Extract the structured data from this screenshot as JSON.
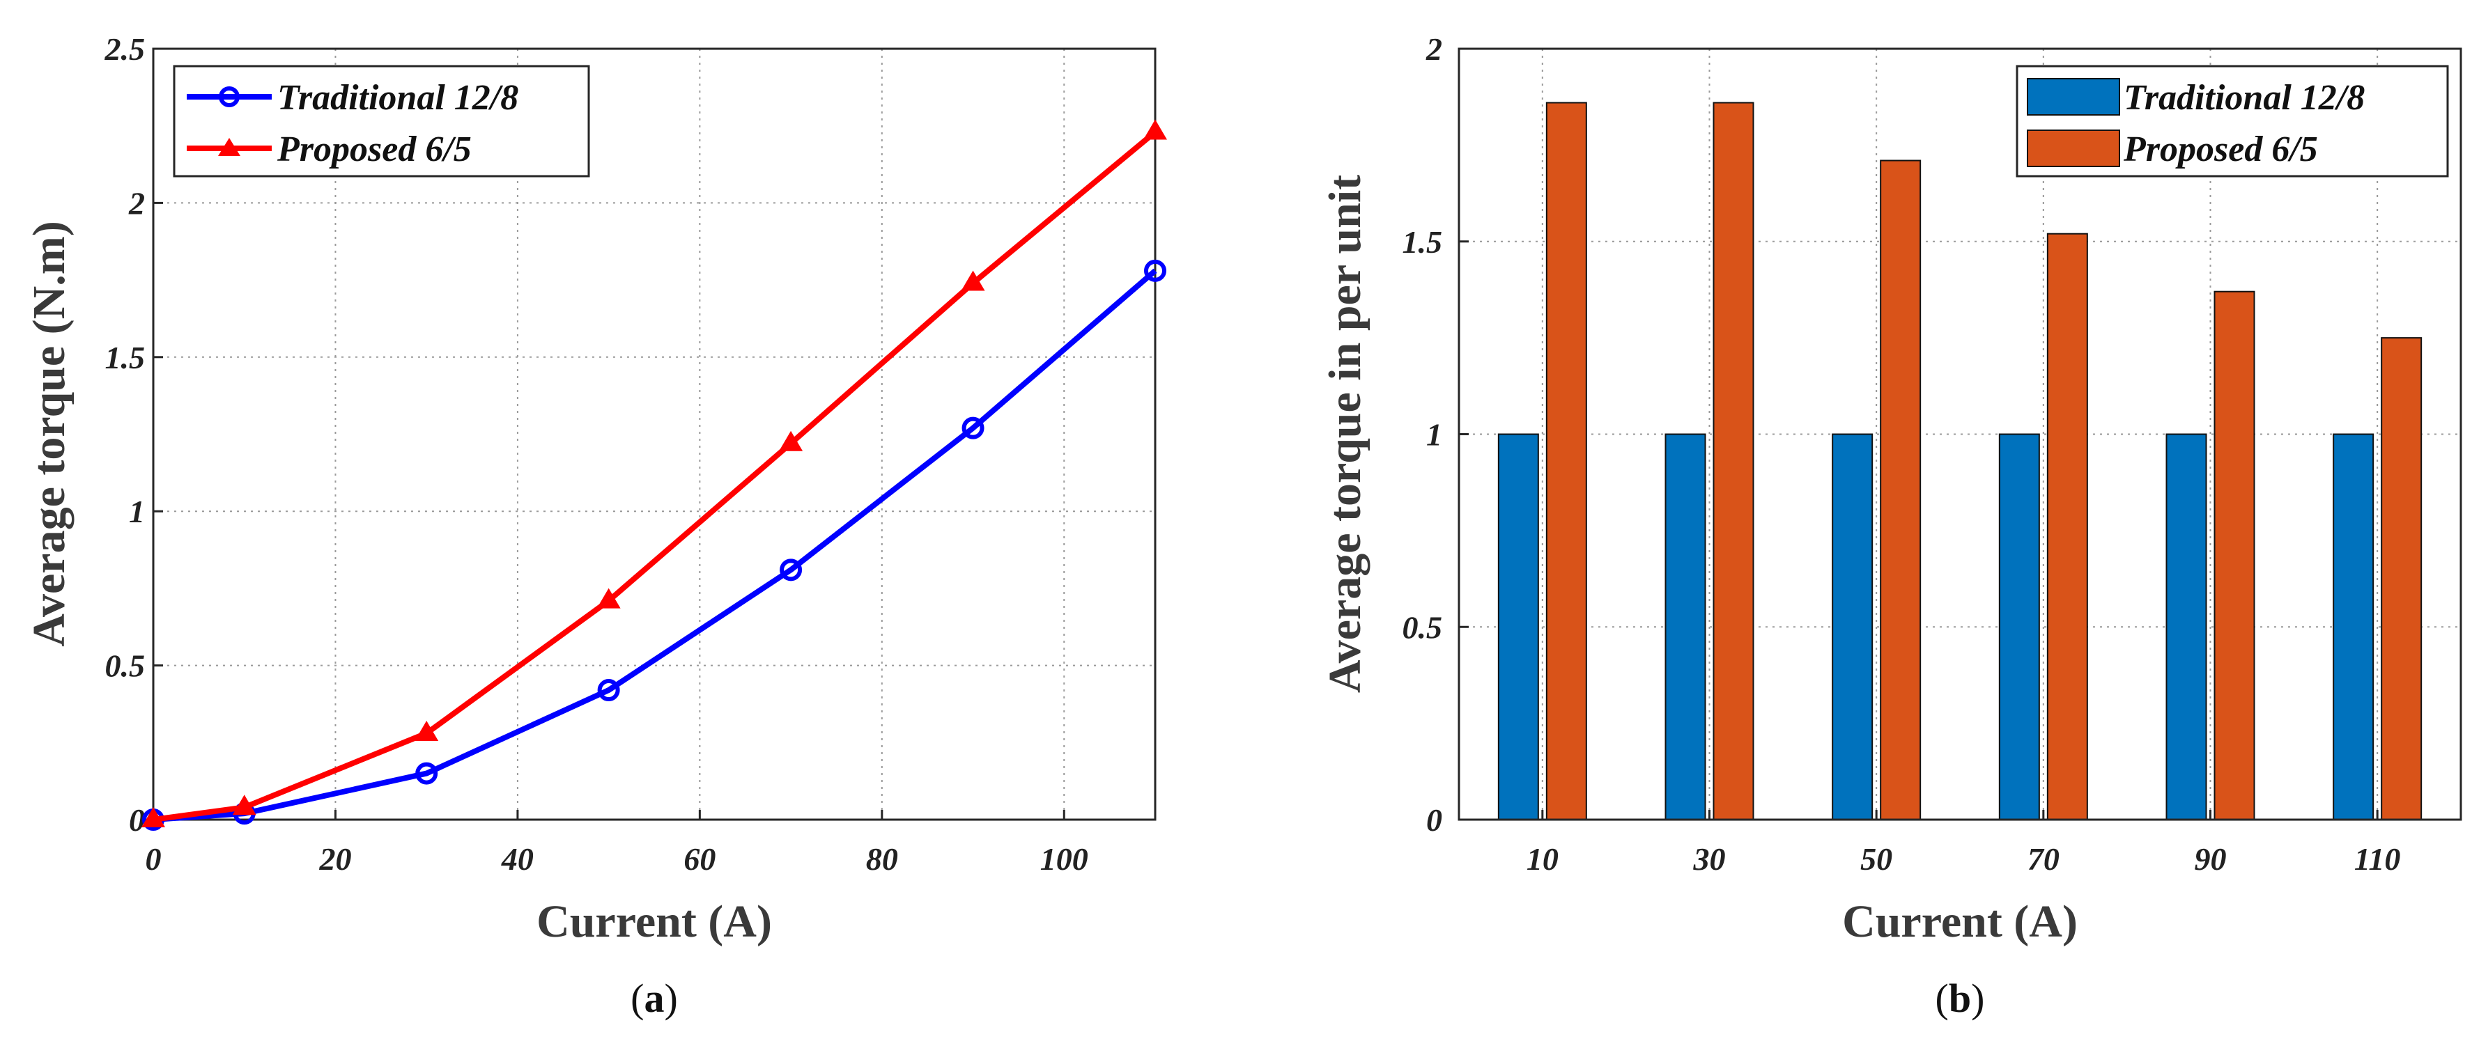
{
  "chart_data": [
    {
      "type": "line",
      "caption": "a",
      "xlabel": "Current (A)",
      "ylabel": "Average torque (N.m)",
      "xlim": [
        0,
        110
      ],
      "ylim": [
        0,
        2.5
      ],
      "xticks": [
        "0",
        "20",
        "40",
        "60",
        "80",
        "100"
      ],
      "yticks": [
        "0",
        "0.5",
        "1",
        "1.5",
        "2",
        "2.5"
      ],
      "grid": true,
      "legend_position": "top-left",
      "x": [
        0,
        10,
        30,
        50,
        70,
        90,
        110
      ],
      "series": [
        {
          "name": "Traditional 12/8",
          "color": "#0000ff",
          "marker": "circle",
          "values": [
            0,
            0.02,
            0.15,
            0.42,
            0.81,
            1.27,
            1.78
          ]
        },
        {
          "name": "Proposed 6/5",
          "color": "#ff0000",
          "marker": "triangle",
          "values": [
            0,
            0.04,
            0.28,
            0.71,
            1.22,
            1.74,
            2.23
          ]
        }
      ]
    },
    {
      "type": "bar",
      "caption": "b",
      "xlabel": "Current (A)",
      "ylabel": "Average torque in per unit",
      "ylim": [
        0,
        2
      ],
      "yticks": [
        "0",
        "0.5",
        "1",
        "1.5",
        "2"
      ],
      "grid": true,
      "legend_position": "top-right",
      "categories": [
        "10",
        "30",
        "50",
        "70",
        "90",
        "110"
      ],
      "series": [
        {
          "name": "Traditional 12/8",
          "color": "#0072bd",
          "values": [
            1,
            1,
            1,
            1,
            1,
            1
          ]
        },
        {
          "name": "Proposed 6/5",
          "color": "#d95319",
          "values": [
            1.86,
            1.86,
            1.71,
            1.52,
            1.37,
            1.25
          ]
        }
      ]
    }
  ]
}
